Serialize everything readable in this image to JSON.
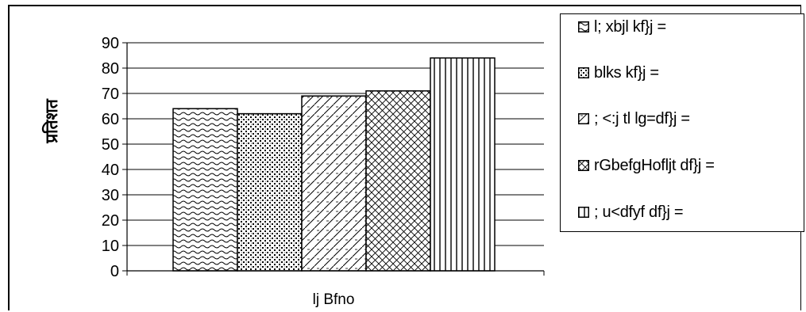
{
  "chart_data": {
    "type": "bar",
    "title": "",
    "xlabel": "lj Bfno",
    "ylabel": "प्रतिशत",
    "ylim": [
      0,
      90
    ],
    "yticks": [
      0,
      10,
      20,
      30,
      40,
      50,
      60,
      70,
      80,
      90
    ],
    "grid": true,
    "legend_position": "right",
    "categories": [
      "lj Bfno"
    ],
    "series": [
      {
        "name": "l; xbjl kf}j =",
        "values": [
          64
        ],
        "pattern": "wave"
      },
      {
        "name": "blks kf}j =",
        "values": [
          62
        ],
        "pattern": "dots"
      },
      {
        "name": "; <:j tl lg=df}j =",
        "values": [
          69
        ],
        "pattern": "diagonal"
      },
      {
        "name": "rGbefgHofljt df}j =",
        "values": [
          71
        ],
        "pattern": "crosshatch"
      },
      {
        "name": "; u<dfyf df}j =",
        "values": [
          84
        ],
        "pattern": "vertical"
      }
    ]
  }
}
